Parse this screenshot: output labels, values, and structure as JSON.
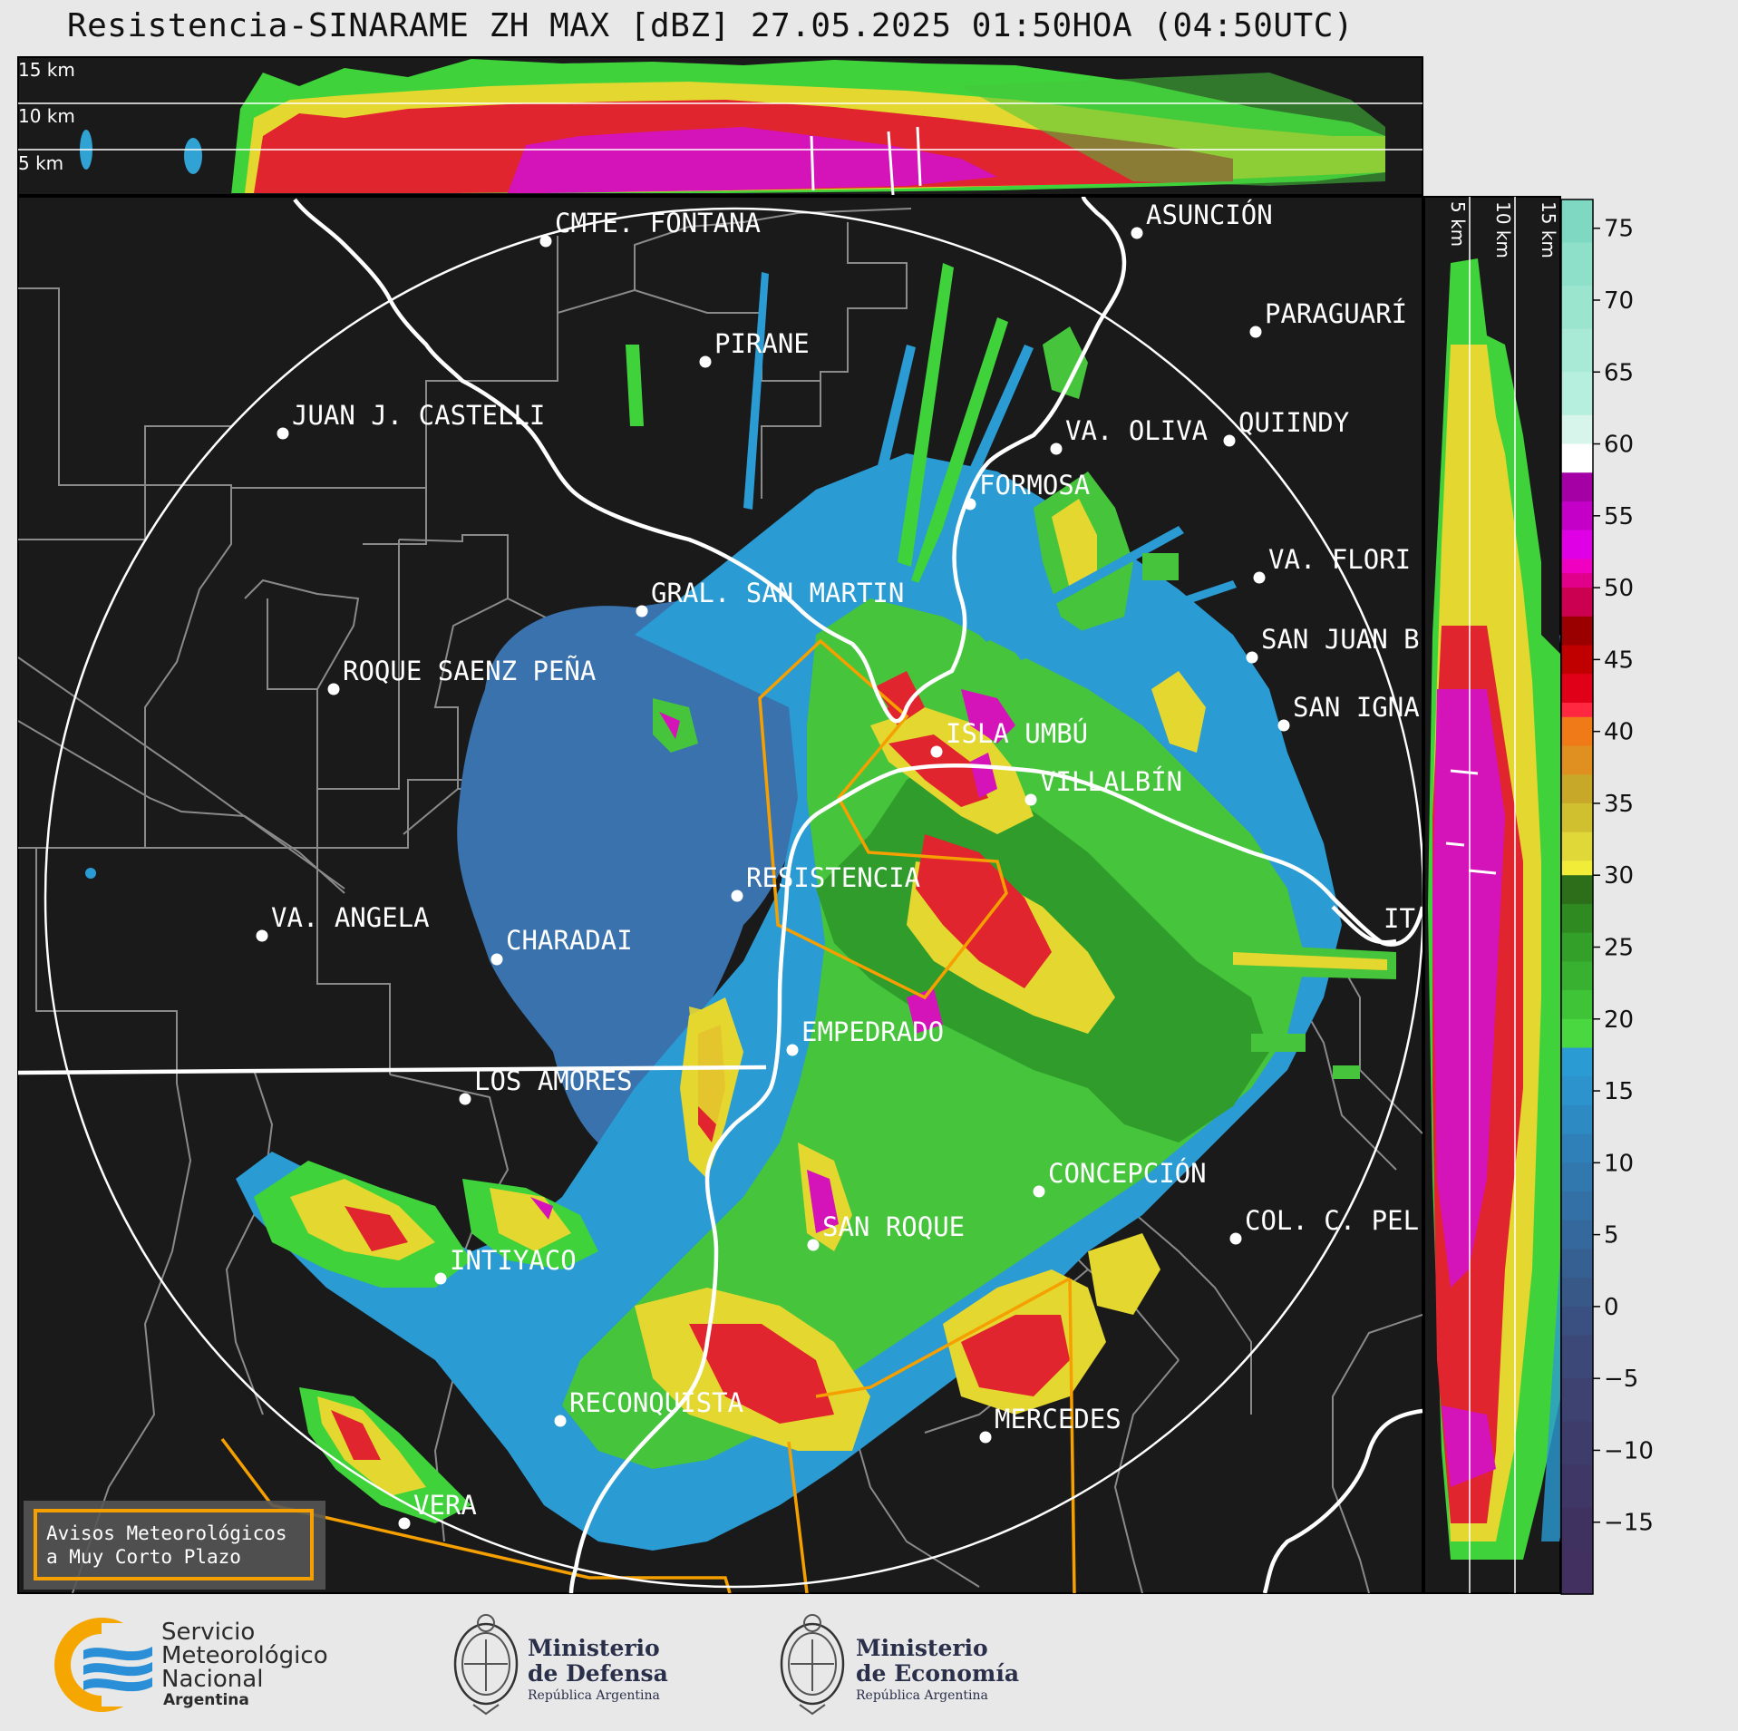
{
  "title": "Resistencia-SINARAME ZH MAX [dBZ] 27.05.2025 01:50HOA (04:50UTC)",
  "top_profile": {
    "labels": [
      "15 km",
      "10 km",
      "5 km"
    ]
  },
  "side_profile": {
    "labels": [
      "5 km",
      "10 km",
      "15 km"
    ]
  },
  "colorbar": {
    "ticks": [
      "75",
      "70",
      "65",
      "60",
      "55",
      "50",
      "45",
      "40",
      "35",
      "30",
      "25",
      "20",
      "15",
      "10",
      "5",
      "0",
      "−5",
      "−10",
      "−15"
    ]
  },
  "cities": [
    {
      "name": "CMTE. FONTANA"
    },
    {
      "name": "ASUNCIÓN"
    },
    {
      "name": "PARAGUARÍ"
    },
    {
      "name": "PIRANE"
    },
    {
      "name": "JUAN J. CASTELLI"
    },
    {
      "name": "VA. OLIVA"
    },
    {
      "name": "QUIINDY"
    },
    {
      "name": "FORMOSA"
    },
    {
      "name": "VA. FLORI"
    },
    {
      "name": "GRAL. SAN MARTIN"
    },
    {
      "name": "SAN JUAN B"
    },
    {
      "name": "ROQUE SAENZ PEÑA"
    },
    {
      "name": "SAN IGNA"
    },
    {
      "name": "ISLA UMBÚ"
    },
    {
      "name": "VILLALBÍN"
    },
    {
      "name": "RESISTENCIA"
    },
    {
      "name": "VA. ANGELA"
    },
    {
      "name": "CHARADAI"
    },
    {
      "name": "IT"
    },
    {
      "name": "EMPEDRADO"
    },
    {
      "name": "LOS AMORES"
    },
    {
      "name": "CONCEPCIÓN"
    },
    {
      "name": "SAN ROQUE"
    },
    {
      "name": "COL. C. PEL"
    },
    {
      "name": "INTIYACO"
    },
    {
      "name": "RECONQUISTA"
    },
    {
      "name": "MERCEDES"
    },
    {
      "name": "VERA"
    }
  ],
  "warning_box": {
    "line1": "Avisos Meteorológicos",
    "line2": "a Muy Corto Plazo"
  },
  "logos": {
    "smn": {
      "line1": "Servicio",
      "line2": "Meteorológico",
      "line3": "Nacional",
      "line4": "Argentina"
    },
    "defensa": {
      "line1": "Ministerio",
      "line2": "de Defensa",
      "line3": "República Argentina"
    },
    "economia": {
      "line1": "Ministerio",
      "line2": "de Economía",
      "line3": "República Argentina"
    }
  },
  "colors": {
    "background_map": "#1a1a1a",
    "border_province": "#8a8a8a",
    "river": "#ffffff",
    "warning_polygon": "#f5a000",
    "smn_blue": "#2a8fd6",
    "smn_orange": "#f5a600"
  }
}
